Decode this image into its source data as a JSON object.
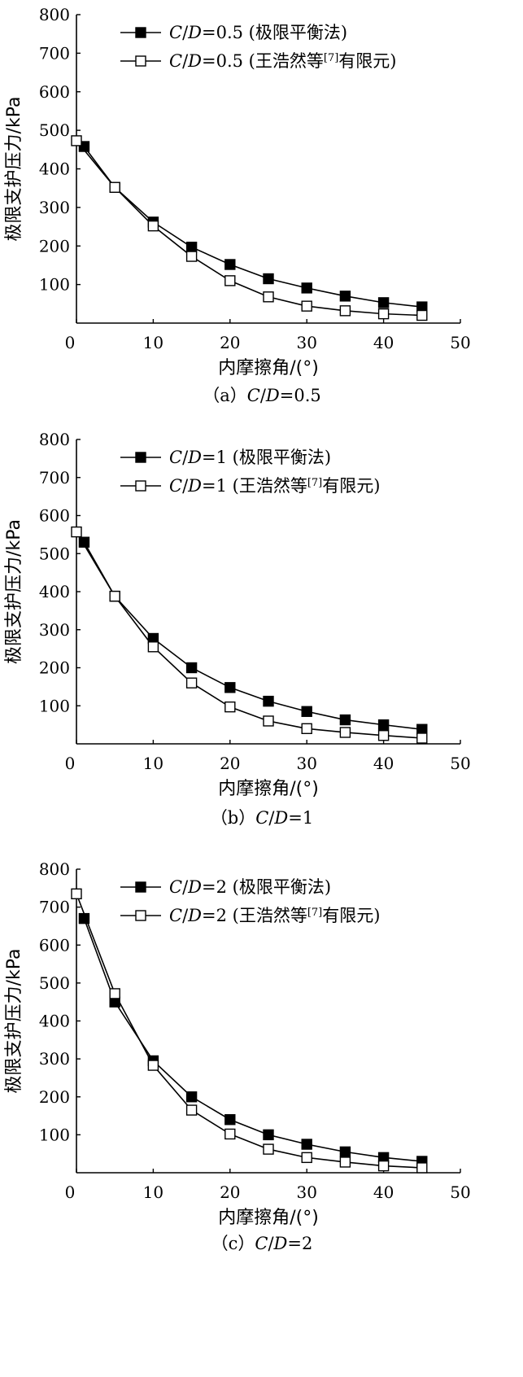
{
  "chart_data": [
    {
      "type": "line",
      "caption": "（a）C/D=0.5",
      "xlabel": "内摩擦角/(°)",
      "ylabel": "极限支护压力/kPa",
      "xlim": [
        0,
        50
      ],
      "ylim": [
        0,
        800
      ],
      "xticks": [
        "0",
        "10",
        "20",
        "30",
        "40",
        "50"
      ],
      "yticks": [
        "100",
        "200",
        "300",
        "400",
        "500",
        "600",
        "700",
        "800"
      ],
      "legend_position": "top-left",
      "series": [
        {
          "name": "C/D=0.5 (极限平衡法)",
          "marker": "filled-square",
          "x": [
            1,
            5,
            10,
            15,
            20,
            25,
            30,
            35,
            40,
            45
          ],
          "y": [
            458,
            352,
            262,
            197,
            152,
            115,
            91,
            70,
            53,
            42
          ]
        },
        {
          "name": "C/D=0.5 (王浩然等[7]有限元)",
          "marker": "open-square",
          "x": [
            0,
            5,
            10,
            15,
            20,
            25,
            30,
            35,
            40,
            45
          ],
          "y": [
            473,
            352,
            252,
            173,
            110,
            68,
            44,
            32,
            24,
            20
          ]
        }
      ]
    },
    {
      "type": "line",
      "caption": "（b）C/D=1",
      "xlabel": "内摩擦角/(°)",
      "ylabel": "极限支护压力/kPa",
      "xlim": [
        0,
        50
      ],
      "ylim": [
        0,
        800
      ],
      "xticks": [
        "0",
        "10",
        "20",
        "30",
        "40",
        "50"
      ],
      "yticks": [
        "100",
        "200",
        "300",
        "400",
        "500",
        "600",
        "700",
        "800"
      ],
      "legend_position": "top-left",
      "series": [
        {
          "name": "C/D=1 (极限平衡法)",
          "marker": "filled-square",
          "x": [
            1,
            5,
            10,
            15,
            20,
            25,
            30,
            35,
            40,
            45
          ],
          "y": [
            530,
            388,
            277,
            200,
            148,
            112,
            85,
            63,
            50,
            38
          ]
        },
        {
          "name": "C/D=1 (王浩然等[7]有限元)",
          "marker": "open-square",
          "x": [
            0,
            5,
            10,
            15,
            20,
            25,
            30,
            35,
            40,
            45
          ],
          "y": [
            557,
            388,
            255,
            160,
            97,
            60,
            40,
            30,
            22,
            15
          ]
        }
      ]
    },
    {
      "type": "line",
      "caption": "（c）C/D=2",
      "xlabel": "内摩擦角/(°)",
      "ylabel": "极限支护压力/kPa",
      "xlim": [
        0,
        50
      ],
      "ylim": [
        0,
        800
      ],
      "xticks": [
        "0",
        "10",
        "20",
        "30",
        "40",
        "50"
      ],
      "yticks": [
        "100",
        "200",
        "300",
        "400",
        "500",
        "600",
        "700",
        "800"
      ],
      "legend_position": "top-left",
      "series": [
        {
          "name": "C/D=2 (极限平衡法)",
          "marker": "filled-square",
          "x": [
            1,
            5,
            10,
            15,
            20,
            25,
            30,
            35,
            40,
            45
          ],
          "y": [
            670,
            450,
            295,
            200,
            140,
            100,
            75,
            55,
            40,
            30
          ]
        },
        {
          "name": "C/D=2 (王浩然等[7]有限元)",
          "marker": "open-square",
          "x": [
            0,
            5,
            10,
            15,
            20,
            25,
            30,
            35,
            40,
            45
          ],
          "y": [
            735,
            472,
            283,
            165,
            102,
            62,
            40,
            28,
            18,
            13
          ]
        }
      ]
    }
  ]
}
